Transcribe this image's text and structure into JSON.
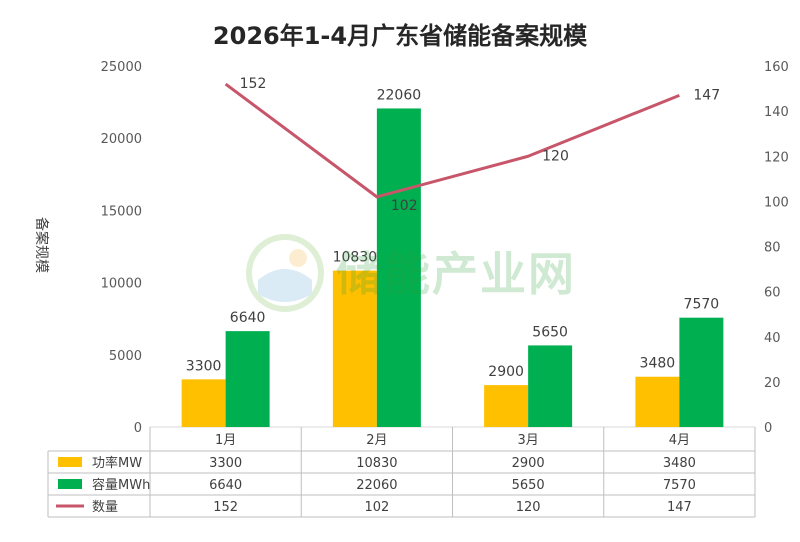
{
  "chart_data": {
    "type": "bar",
    "title": "2026年1-4月广东省储能备案规模",
    "ylabel": "备案规模",
    "categories": [
      "1月",
      "2月",
      "3月",
      "4月"
    ],
    "ylim": [
      0,
      25000
    ],
    "y2lim": [
      0,
      160
    ],
    "yticks": [
      0,
      5000,
      10000,
      15000,
      20000,
      25000
    ],
    "y2ticks": [
      0,
      20,
      40,
      60,
      80,
      100,
      120,
      140,
      160
    ],
    "series": [
      {
        "name": "功率MW",
        "type": "bar",
        "axis": "left",
        "color": "#ffc000",
        "values": [
          3300,
          10830,
          2900,
          3480
        ]
      },
      {
        "name": "容量MWh",
        "type": "bar",
        "axis": "left",
        "color": "#00b050",
        "values": [
          6640,
          22060,
          5650,
          7570
        ]
      },
      {
        "name": "数量",
        "type": "line",
        "axis": "right",
        "color": "#c8566a",
        "values": [
          152,
          102,
          120,
          147
        ]
      }
    ],
    "grid": false,
    "legend": "data-table-bottom"
  },
  "watermark": {
    "text": "储能产业网"
  }
}
